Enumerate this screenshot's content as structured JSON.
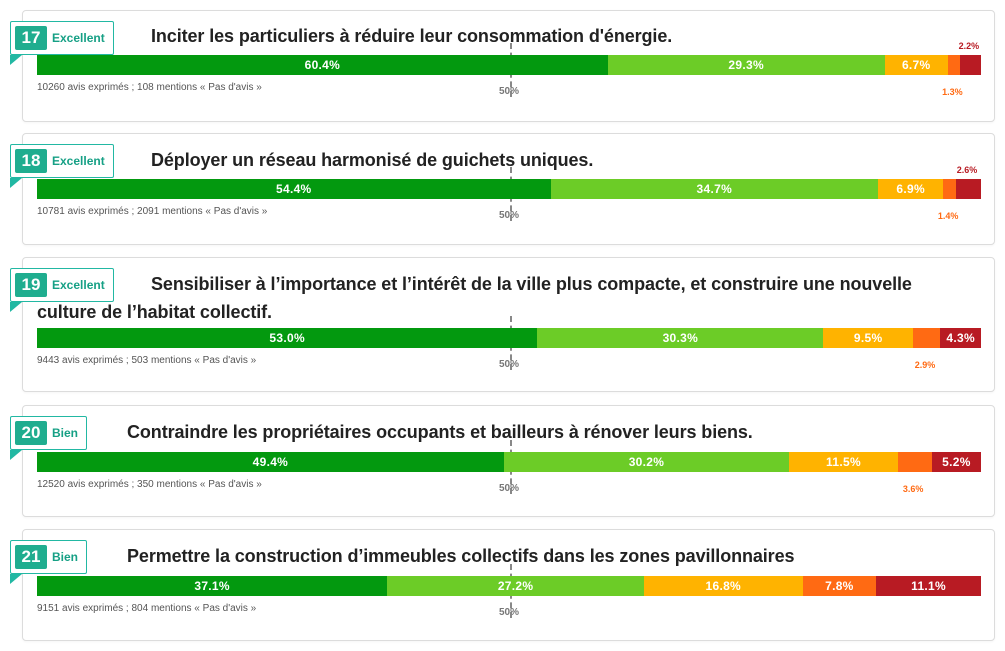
{
  "colors": {
    "excellent": "#03990f",
    "tres_bien": "#6ccc27",
    "assez_bien": "#ffb300",
    "passable": "#ff6a13",
    "insuffisant": "#b81b23"
  },
  "chart_data": {
    "type": "bar",
    "stacked": true,
    "orientation": "horizontal",
    "reference_line": "50%",
    "rows": [
      {
        "id": "17",
        "rating": "Excellent",
        "title": "Inciter les particuliers à réduire leur consommation d'énergie.",
        "stats": "10260 avis exprimés ; 108 mentions « Pas d'avis »",
        "values": [
          60.4,
          29.3,
          6.7,
          1.3,
          2.2
        ],
        "labels": [
          "60.4%",
          "29.3%",
          "6.7%",
          "1.3%",
          "2.2%"
        ]
      },
      {
        "id": "18",
        "rating": "Excellent",
        "title": "Déployer un réseau harmonisé de guichets uniques.",
        "stats": "10781 avis exprimés ; 2091 mentions « Pas d'avis »",
        "values": [
          54.4,
          34.7,
          6.9,
          1.4,
          2.6
        ],
        "labels": [
          "54.4%",
          "34.7%",
          "6.9%",
          "1.4%",
          "2.6%"
        ]
      },
      {
        "id": "19",
        "rating": "Excellent",
        "title": "Sensibiliser à l’importance et l’intérêt de la ville plus compacte, et construire une nouvelle culture de l’habitat collectif.",
        "stats": "9443 avis exprimés ; 503 mentions « Pas d'avis »",
        "values": [
          53.0,
          30.3,
          9.5,
          2.9,
          4.3
        ],
        "labels": [
          "53.0%",
          "30.3%",
          "9.5%",
          "2.9%",
          "4.3%"
        ]
      },
      {
        "id": "20",
        "rating": "Bien",
        "title": "Contraindre les propriétaires occupants et bailleurs à rénover leurs biens.",
        "stats": "12520 avis exprimés ; 350 mentions « Pas d'avis »",
        "values": [
          49.4,
          30.2,
          11.5,
          3.6,
          5.2
        ],
        "labels": [
          "49.4%",
          "30.2%",
          "11.5%",
          "3.6%",
          "5.2%"
        ]
      },
      {
        "id": "21",
        "rating": "Bien",
        "title": "Permettre la construction d’immeubles collectifs dans les zones pavillonnaires",
        "stats": "9151 avis exprimés ; 804 mentions « Pas d'avis »",
        "values": [
          37.1,
          27.2,
          16.8,
          7.8,
          11.1
        ],
        "labels": [
          "37.1%",
          "27.2%",
          "16.8%",
          "7.8%",
          "11.1%"
        ]
      }
    ]
  }
}
